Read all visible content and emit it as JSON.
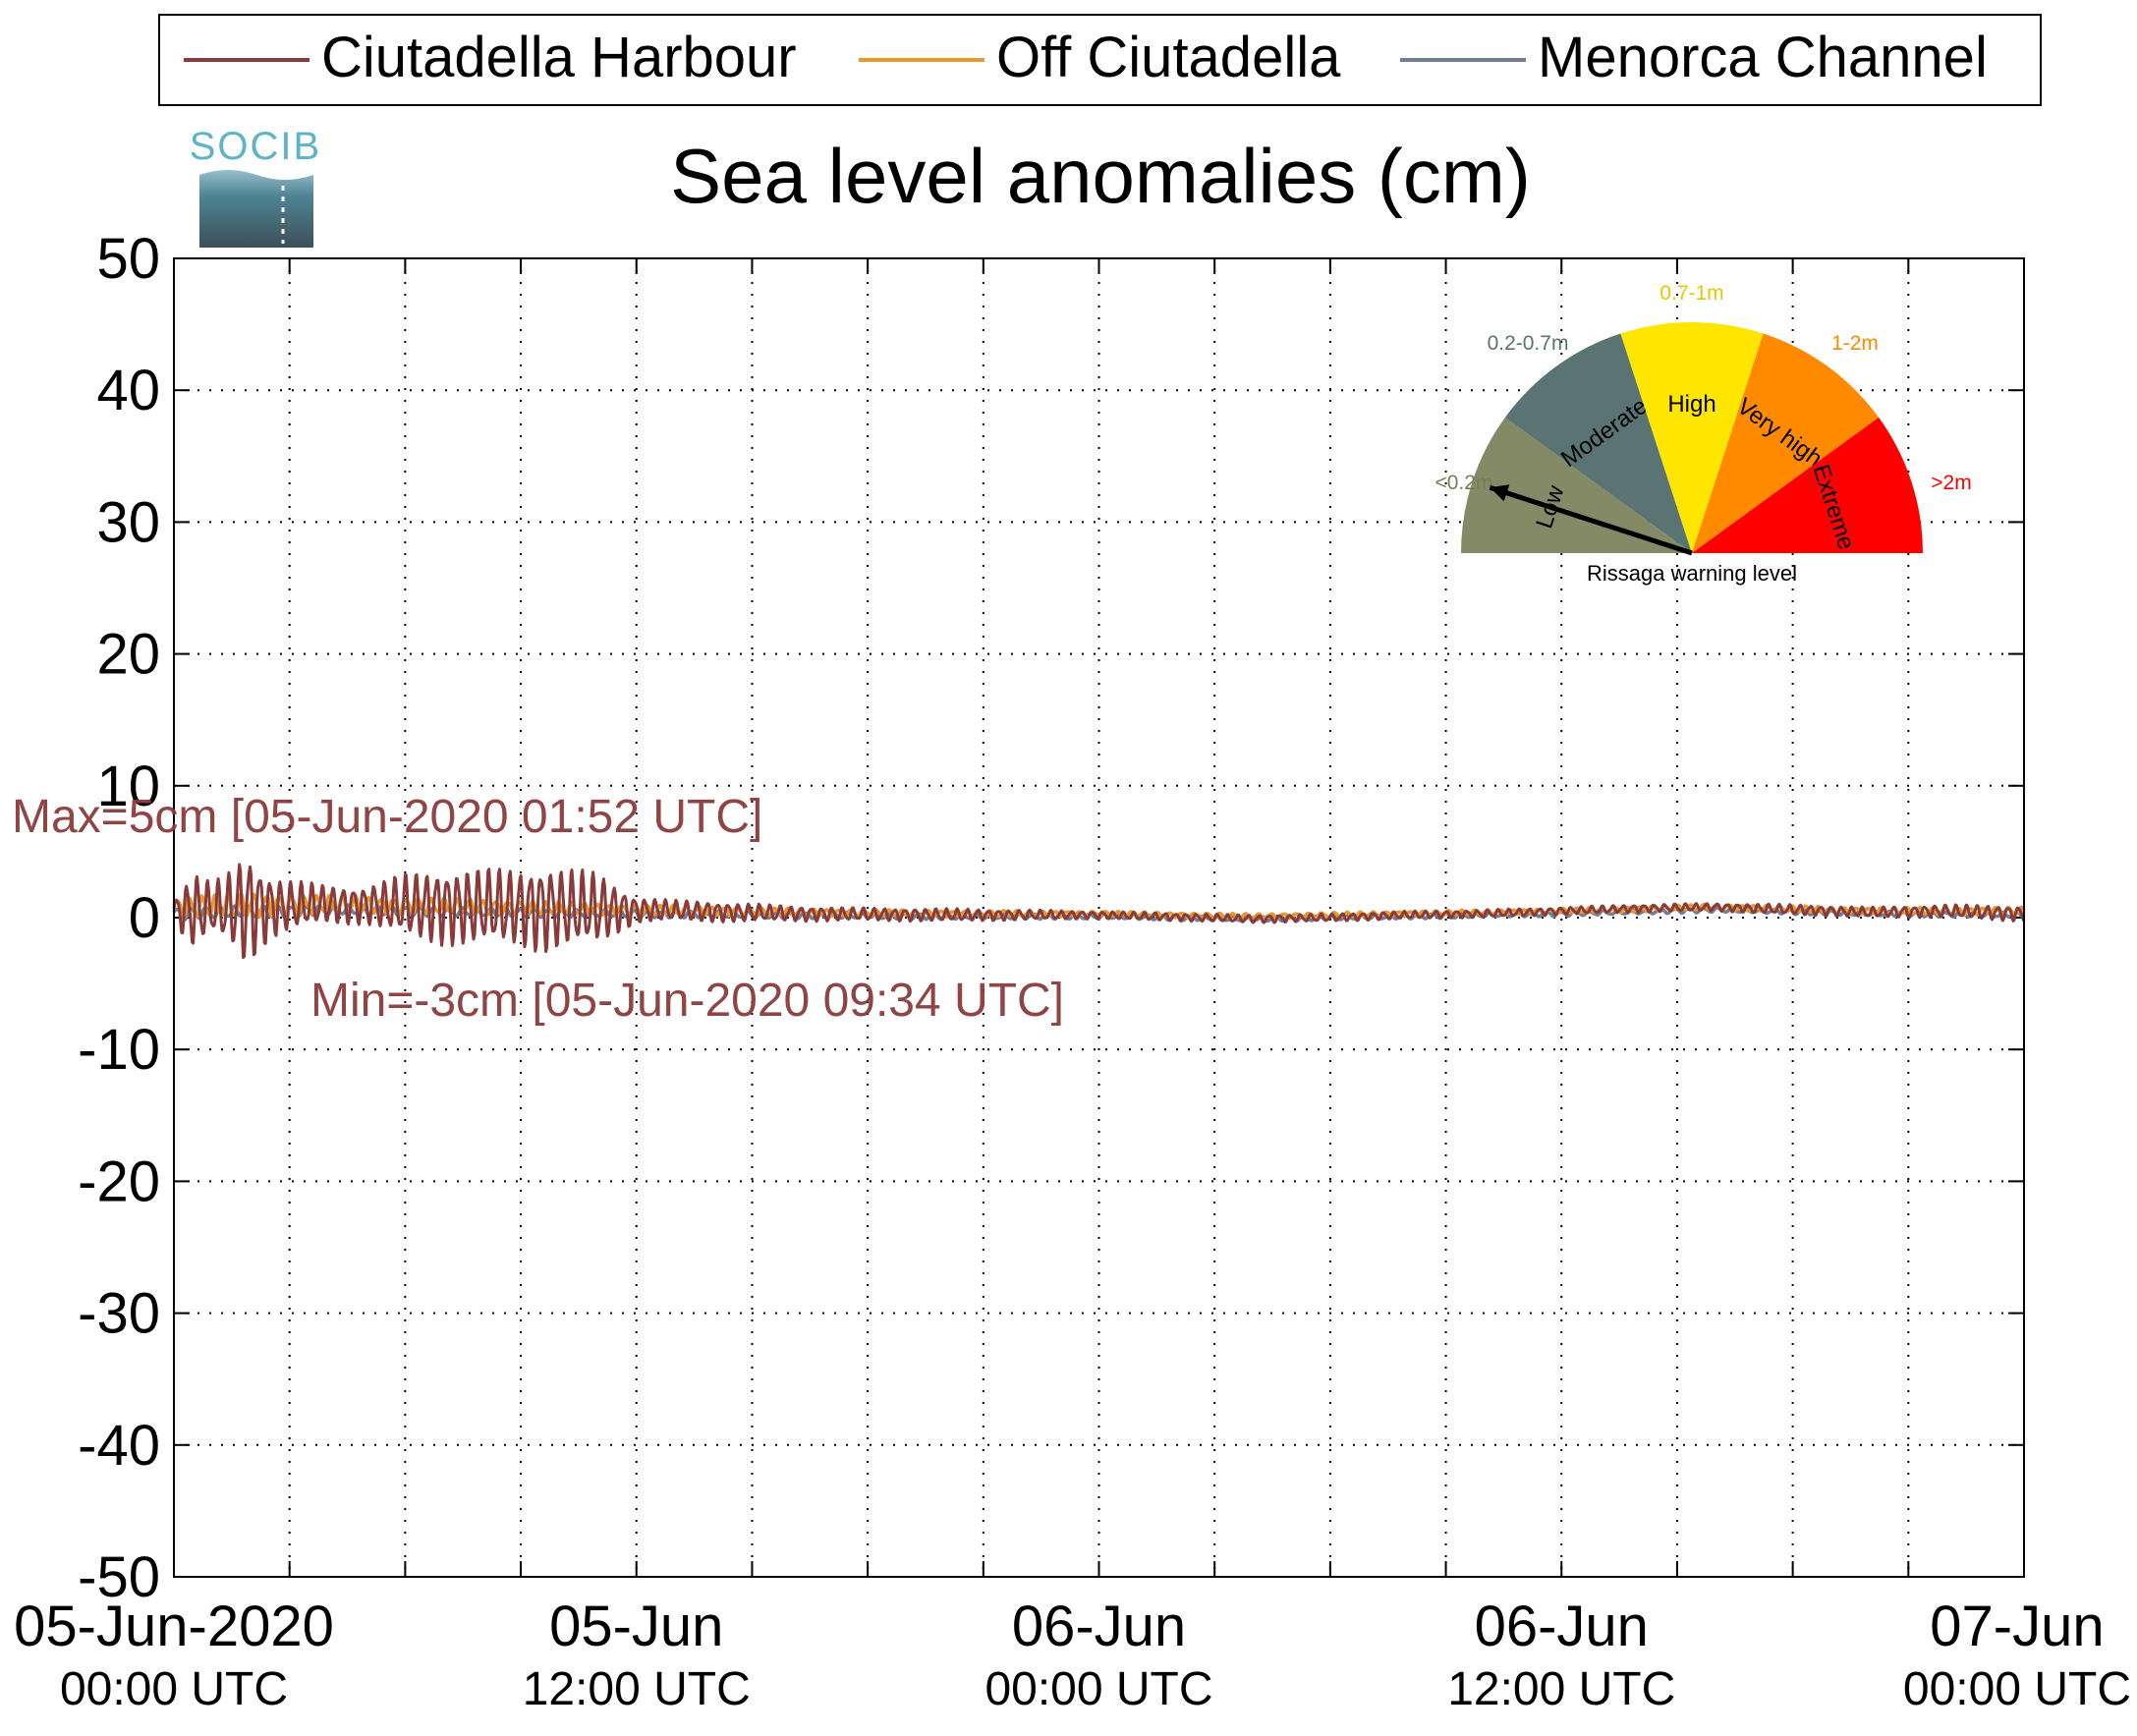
{
  "logo": {
    "text": "SOCIB"
  },
  "colors": {
    "harbour": "#8b3a3a",
    "off": "#e69a2e",
    "channel": "#6e7f96",
    "gauge_low": "#848a66",
    "gauge_moderate": "#5a7373",
    "gauge_high": "#ffe600",
    "gauge_veryhigh": "#ff8a00",
    "gauge_extreme": "#ff0000"
  },
  "chart_data": {
    "type": "line",
    "title": "Sea level anomalies (cm)",
    "xlabel": "",
    "ylabel": "",
    "ylim": [
      -50,
      50
    ],
    "yticks": [
      50,
      40,
      30,
      20,
      10,
      0,
      -10,
      -20,
      -30,
      -40,
      -50
    ],
    "xlim_hours": [
      0,
      48
    ],
    "xtick_labels": [
      {
        "hour": 0,
        "line1": "05-Jun-2020",
        "line2": "00:00 UTC"
      },
      {
        "hour": 12,
        "line1": "05-Jun",
        "line2": "12:00 UTC"
      },
      {
        "hour": 24,
        "line1": "06-Jun",
        "line2": "00:00 UTC"
      },
      {
        "hour": 36,
        "line1": "06-Jun",
        "line2": "12:00 UTC"
      },
      {
        "hour": 48,
        "line1": "07-Jun",
        "line2": "00:00 UTC"
      }
    ],
    "grid": true,
    "legend_position": "top",
    "series": [
      {
        "name": "Ciutadella Harbour",
        "color": "#8b3a3a",
        "envelope": {
          "hours": [
            0,
            0.5,
            1,
            1.5,
            1.87,
            2.5,
            3,
            4,
            5,
            6,
            7,
            8,
            9,
            9.57,
            10,
            11,
            12,
            13,
            14,
            16,
            18,
            20,
            22,
            24,
            26,
            28,
            30,
            32,
            34,
            36,
            38,
            40,
            42,
            44,
            46,
            48
          ],
          "amplitude": [
            1,
            3,
            2,
            3,
            4.5,
            2.5,
            2,
            1.5,
            1.5,
            2.5,
            3,
            3,
            3,
            3.5,
            3.2,
            2.8,
            1,
            0.8,
            0.8,
            0.6,
            0.5,
            0.5,
            0.4,
            0.3,
            0.3,
            0.3,
            0.3,
            0.3,
            0.3,
            0.3,
            0.3,
            0.3,
            0.4,
            0.4,
            0.5,
            0.6
          ]
        },
        "baseline": {
          "hours": [
            0,
            4,
            8,
            12,
            16,
            20,
            24,
            28,
            30,
            32,
            34,
            36,
            38,
            40,
            42,
            44,
            46,
            48
          ],
          "values": [
            0.5,
            1,
            0.8,
            0.6,
            0.3,
            0.2,
            0.2,
            -0.1,
            0,
            0.2,
            0.3,
            0.5,
            0.7,
            0.8,
            0.6,
            0.4,
            0.5,
            0.3
          ]
        }
      },
      {
        "name": "Off Ciutadella",
        "color": "#e69a2e",
        "envelope": {
          "hours": [
            0,
            2,
            4,
            8,
            12,
            16,
            24,
            36,
            48
          ],
          "amplitude": [
            0.8,
            1,
            0.7,
            0.6,
            0.4,
            0.3,
            0.2,
            0.2,
            0.3
          ]
        },
        "baseline": {
          "hours": [
            0,
            4,
            8,
            12,
            16,
            20,
            24,
            28,
            32,
            36,
            40,
            44,
            48
          ],
          "values": [
            0.8,
            1,
            0.8,
            0.6,
            0.4,
            0.3,
            0.3,
            0.1,
            0.3,
            0.5,
            0.8,
            0.5,
            0.5
          ]
        }
      },
      {
        "name": "Menorca Channel",
        "color": "#6e7f96",
        "envelope": {
          "hours": [
            0,
            4,
            12,
            24,
            48
          ],
          "amplitude": [
            0.5,
            0.4,
            0.3,
            0.2,
            0.2
          ]
        },
        "baseline": {
          "hours": [
            0,
            4,
            8,
            12,
            16,
            20,
            24,
            28,
            32,
            36,
            40,
            44,
            48
          ],
          "values": [
            0.3,
            0.6,
            0.4,
            0.3,
            0.2,
            0.1,
            0.1,
            -0.1,
            0.1,
            0.3,
            0.6,
            0.3,
            0.2
          ]
        }
      }
    ],
    "annotations": {
      "max": {
        "label": "Max=5cm [05-Jun-2020 01:52 UTC]",
        "value": 5
      },
      "min": {
        "label": "Min=-3cm [05-Jun-2020 09:34 UTC]",
        "value": -3
      }
    }
  },
  "gauge": {
    "caption": "Rissaga warning level",
    "current_level": "Low",
    "segments": [
      {
        "label": "Low",
        "range": "<0.2m",
        "color": "#848a66",
        "range_color": "#7d7a57"
      },
      {
        "label": "Moderate",
        "range": "0.2-0.7m",
        "color": "#5a7373",
        "range_color": "#5a7373"
      },
      {
        "label": "High",
        "range": "0.7-1m",
        "color": "#ffe600",
        "range_color": "#e6c800"
      },
      {
        "label": "Very high",
        "range": "1-2m",
        "color": "#ff8a00",
        "range_color": "#ff8a00"
      },
      {
        "label": "Extreme",
        "range": ">2m",
        "color": "#ff0000",
        "range_color": "#ff0000"
      }
    ]
  }
}
